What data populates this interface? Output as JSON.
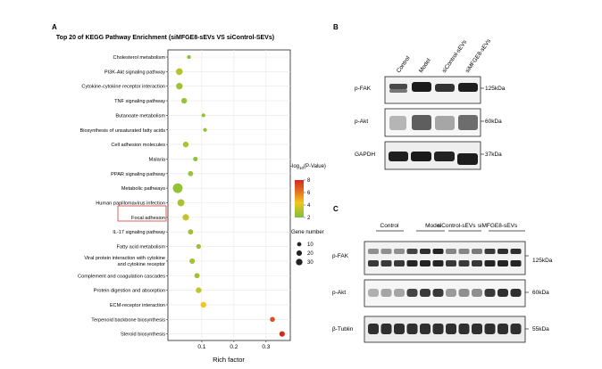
{
  "panel_a": {
    "label": "A",
    "chart_data": {
      "type": "scatter",
      "title": "Top 20 of KEGG Pathway Enrichment (siMFGE8-sEVs VS siControl-SEVs)",
      "xlabel": "Rich factor",
      "ylabel": "",
      "xlim": [
        0,
        0.37
      ],
      "xticks": [
        "0.1",
        "0.2",
        "0.3"
      ],
      "grid": true,
      "categories": [
        "Cholesterol metabolism",
        "PI3K-Akt signaling pathway",
        "Cytokine-cytokine receptor interaction",
        "TNF signaling pathway",
        "Butanoate metabolism",
        "Biosynthesis of unsaturated fatty acids",
        "Cell adhesion molecules",
        "Malaria",
        "PPAR signaling pathway",
        "Metabolic pathways",
        "Human papillomavirus infection",
        "Focal adhesion",
        "IL-17 signaling pathway",
        "Fatty acid metabolism",
        "Viral protein interaction with cytokine|and cytokine receptor",
        "Complement and coagulation cascades",
        "Protein digestion and absorption",
        "ECM-receptor interaction",
        "Terpenoid backbone biosynthesis",
        "Steroid biosynthesis"
      ],
      "points": [
        {
          "x": 0.06,
          "neglogp": 2.2,
          "genes": 3
        },
        {
          "x": 0.03,
          "neglogp": 3.0,
          "genes": 16
        },
        {
          "x": 0.03,
          "neglogp": 2.6,
          "genes": 15
        },
        {
          "x": 0.045,
          "neglogp": 2.5,
          "genes": 10
        },
        {
          "x": 0.105,
          "neglogp": 2.4,
          "genes": 3
        },
        {
          "x": 0.11,
          "neglogp": 2.4,
          "genes": 3
        },
        {
          "x": 0.05,
          "neglogp": 2.8,
          "genes": 10
        },
        {
          "x": 0.08,
          "neglogp": 2.3,
          "genes": 5
        },
        {
          "x": 0.065,
          "neglogp": 2.5,
          "genes": 8
        },
        {
          "x": 0.025,
          "neglogp": 2.4,
          "genes": 40
        },
        {
          "x": 0.035,
          "neglogp": 2.8,
          "genes": 18
        },
        {
          "x": 0.05,
          "neglogp": 3.2,
          "genes": 14
        },
        {
          "x": 0.065,
          "neglogp": 2.6,
          "genes": 8
        },
        {
          "x": 0.09,
          "neglogp": 2.5,
          "genes": 6
        },
        {
          "x": 0.07,
          "neglogp": 2.7,
          "genes": 9
        },
        {
          "x": 0.085,
          "neglogp": 2.6,
          "genes": 8
        },
        {
          "x": 0.09,
          "neglogp": 3.2,
          "genes": 10
        },
        {
          "x": 0.105,
          "neglogp": 4.0,
          "genes": 10
        },
        {
          "x": 0.32,
          "neglogp": 7.0,
          "genes": 7
        },
        {
          "x": 0.35,
          "neglogp": 8.0,
          "genes": 9
        }
      ],
      "highlighted": "Focal adhesion",
      "color_legend": {
        "title": "-log10(P-Value)",
        "ticks": [
          "8",
          "6",
          "4",
          "2"
        ],
        "range": [
          2,
          8
        ],
        "colors": [
          "#7cc03c",
          "#f2c51e",
          "#e26f23",
          "#d42a1a"
        ]
      },
      "size_legend": {
        "title": "Gene number",
        "ticks": [
          "10",
          "20",
          "30"
        ]
      }
    }
  },
  "panel_b": {
    "label": "B",
    "lanes": [
      "Control",
      "Model",
      "siControl-sEVs",
      "siMFGE8-sEVs"
    ],
    "rows": [
      {
        "protein": "p-FAK",
        "kda": "125kDa"
      },
      {
        "protein": "p-Akt",
        "kda": "60kDa"
      },
      {
        "protein": "GAPDH",
        "kda": "37kDa"
      }
    ]
  },
  "panel_c": {
    "label": "C",
    "groups": [
      "Control",
      "Model",
      "siControl-sEVs",
      "siMFGE8-sEVs"
    ],
    "rows": [
      {
        "protein": "p-FAK",
        "kda": "125kDa"
      },
      {
        "protein": "p-Akt",
        "kda": "60kDa"
      },
      {
        "protein": "β-Tublin",
        "kda": "55kDa"
      }
    ]
  }
}
